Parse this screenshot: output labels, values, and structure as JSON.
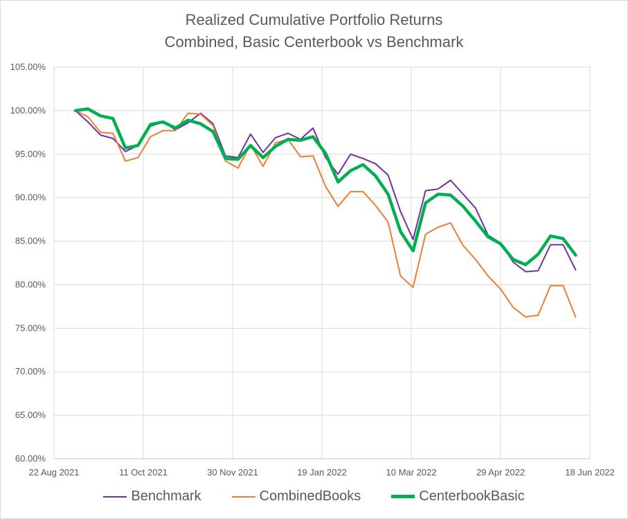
{
  "chart_data": {
    "type": "line",
    "title": "Realized Cumulative Portfolio Returns",
    "subtitle": "Combined, Basic Centerbook vs Benchmark",
    "xlabel": "",
    "ylabel": "",
    "xlim": [
      "2021-08-22",
      "2022-06-18"
    ],
    "ylim": [
      60,
      105
    ],
    "x_tick_labels": [
      "22 Aug 2021",
      "11 Oct 2021",
      "30 Nov 2021",
      "19 Jan 2022",
      "10 Mar 2022",
      "29 Apr 2022",
      "18 Jun 2022"
    ],
    "x_ticks": [
      "2021-08-22",
      "2021-10-11",
      "2021-11-30",
      "2022-01-19",
      "2022-03-10",
      "2022-04-29",
      "2022-06-18"
    ],
    "y_ticks": [
      60,
      65,
      70,
      75,
      80,
      85,
      90,
      95,
      100,
      105
    ],
    "y_tick_labels": [
      "60.00%",
      "65.00%",
      "70.00%",
      "75.00%",
      "80.00%",
      "85.00%",
      "90.00%",
      "95.00%",
      "100.00%",
      "105.00%"
    ],
    "grid": true,
    "legend": "bottom",
    "x": [
      "2021-09-03",
      "2021-09-10",
      "2021-09-17",
      "2021-09-24",
      "2021-10-01",
      "2021-10-08",
      "2021-10-15",
      "2021-10-22",
      "2021-10-29",
      "2021-11-05",
      "2021-11-12",
      "2021-11-19",
      "2021-11-26",
      "2021-12-03",
      "2021-12-10",
      "2021-12-17",
      "2021-12-24",
      "2021-12-31",
      "2022-01-07",
      "2022-01-14",
      "2022-01-21",
      "2022-01-28",
      "2022-02-04",
      "2022-02-11",
      "2022-02-18",
      "2022-02-25",
      "2022-03-04",
      "2022-03-11",
      "2022-03-18",
      "2022-03-25",
      "2022-04-01",
      "2022-04-08",
      "2022-04-15",
      "2022-04-22",
      "2022-04-29",
      "2022-05-06",
      "2022-05-13",
      "2022-05-20",
      "2022-05-27",
      "2022-06-03",
      "2022-06-10"
    ],
    "series": [
      {
        "name": "Benchmark",
        "color": "#7030a0",
        "width": 2,
        "values": [
          100.0,
          98.7,
          97.2,
          96.8,
          95.3,
          96.0,
          98.2,
          98.7,
          97.8,
          98.6,
          99.7,
          98.5,
          94.8,
          94.6,
          97.3,
          95.2,
          96.9,
          97.4,
          96.7,
          98.0,
          94.6,
          92.7,
          95.0,
          94.5,
          93.9,
          92.6,
          88.4,
          85.2,
          90.8,
          91.0,
          92.0,
          90.4,
          88.8,
          85.7,
          84.8,
          82.6,
          81.5,
          81.6,
          84.6,
          84.6,
          81.7
        ]
      },
      {
        "name": "CombinedBooks",
        "color": "#ed7d31",
        "width": 2,
        "values": [
          100.0,
          99.3,
          97.5,
          97.4,
          94.2,
          94.6,
          97.0,
          97.7,
          97.7,
          99.7,
          99.6,
          98.3,
          94.2,
          93.4,
          96.1,
          93.6,
          96.3,
          96.7,
          94.7,
          94.8,
          91.3,
          89.0,
          90.7,
          90.7,
          89.1,
          87.2,
          81.0,
          79.7,
          85.8,
          86.6,
          87.1,
          84.5,
          82.9,
          81.0,
          79.5,
          77.4,
          76.3,
          76.5,
          79.9,
          79.9,
          76.3
        ]
      },
      {
        "name": "CenterbookBasic",
        "color": "#00b050",
        "width": 4.5,
        "values": [
          100.0,
          100.2,
          99.4,
          99.1,
          95.7,
          96.0,
          98.4,
          98.7,
          98.0,
          98.9,
          98.5,
          97.6,
          94.5,
          94.4,
          96.0,
          94.6,
          95.9,
          96.7,
          96.6,
          97.0,
          95.1,
          91.8,
          93.1,
          93.8,
          92.5,
          90.4,
          86.1,
          83.9,
          89.4,
          90.4,
          90.3,
          89.0,
          87.3,
          85.5,
          84.7,
          82.9,
          82.3,
          83.5,
          85.6,
          85.3,
          83.4
        ]
      }
    ]
  }
}
